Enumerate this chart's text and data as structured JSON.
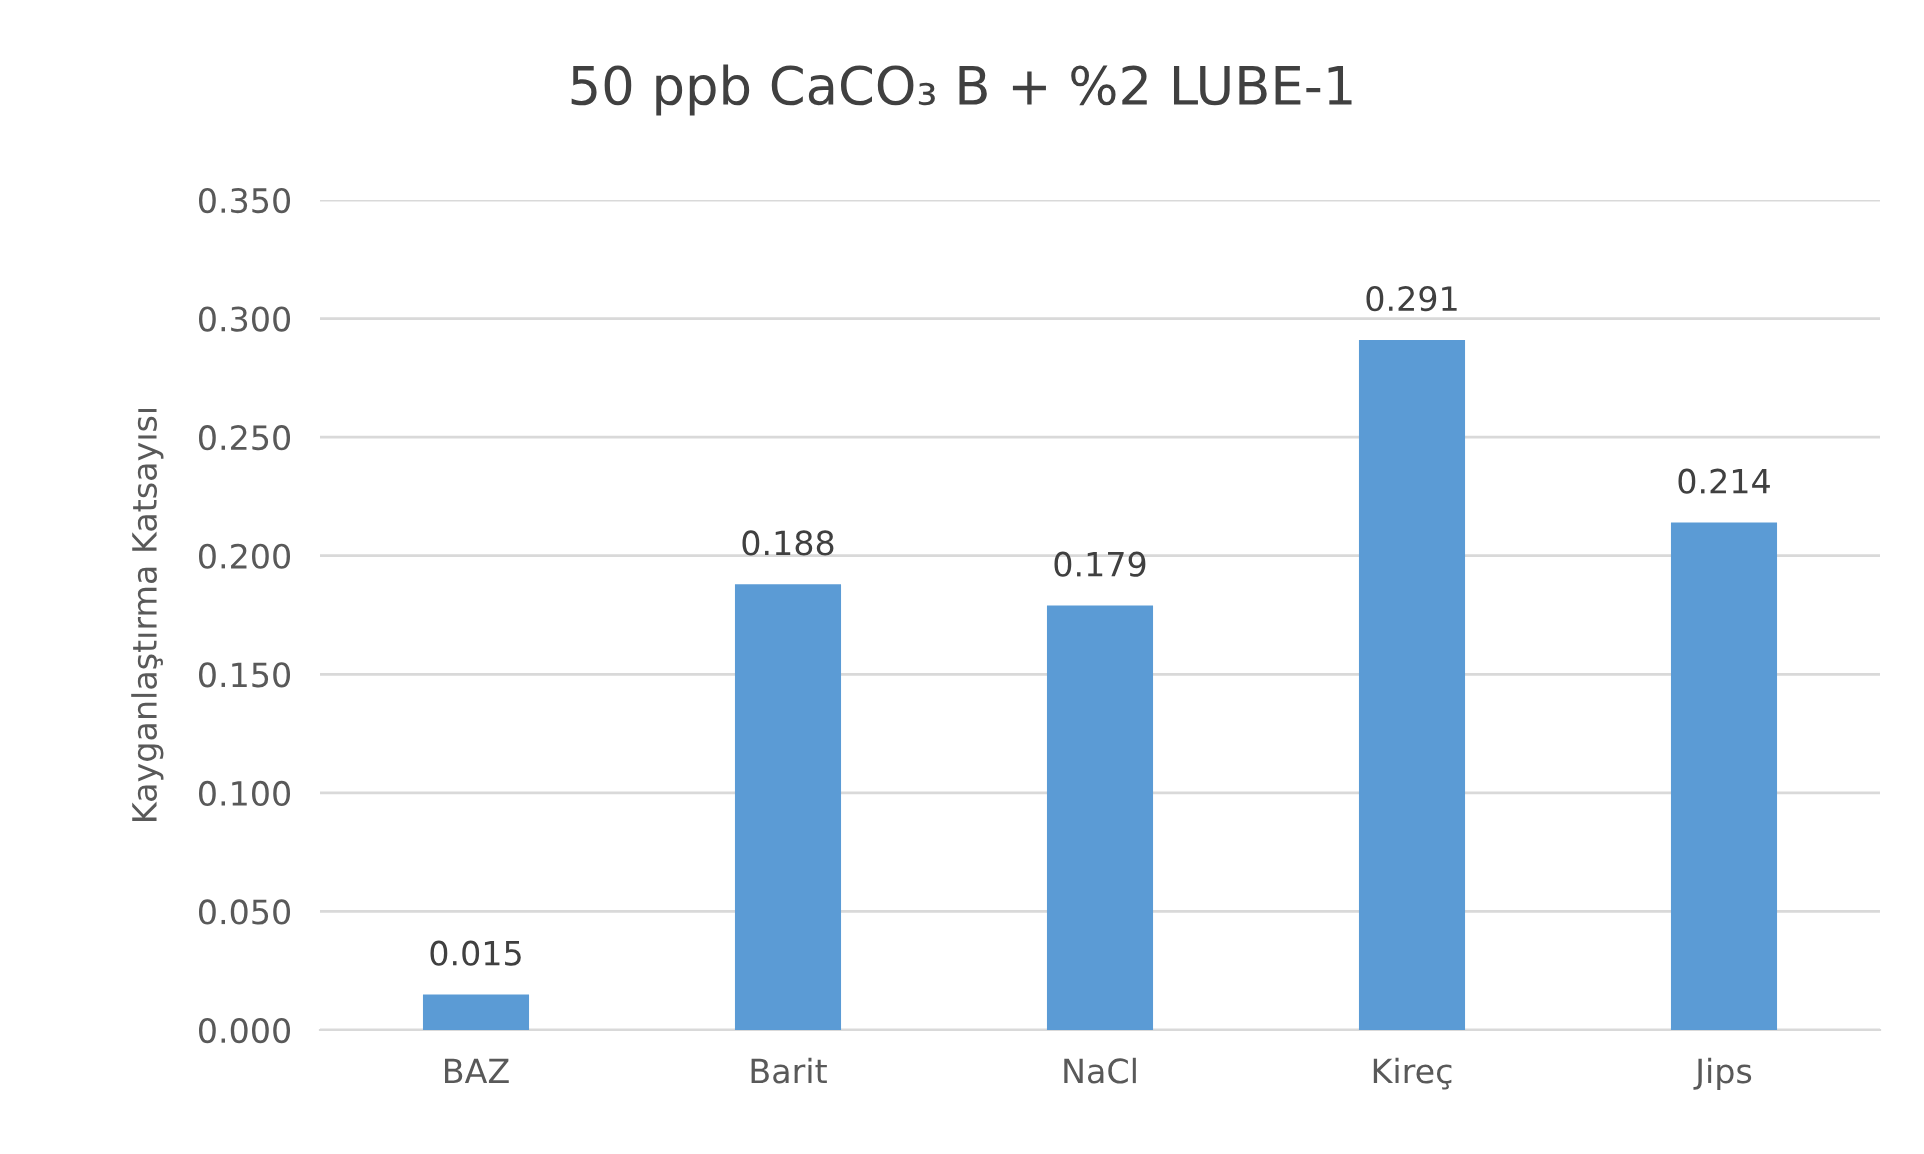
{
  "chart_data": {
    "type": "bar",
    "title": "50 ppb CaCO₃ B + %2 LUBE-1",
    "ylabel": "Kayganlaştırma Katsayısı",
    "categories": [
      "BAZ",
      "Barit",
      "NaCl",
      "Kireç",
      "Jips"
    ],
    "values": [
      0.015,
      0.188,
      0.179,
      0.291,
      0.214
    ],
    "color": "#5b9bd5",
    "ylim": [
      0,
      0.35
    ],
    "yticks": [
      {
        "value": 0,
        "label": "0.000"
      },
      {
        "value": 0.05,
        "label": "0.050"
      },
      {
        "value": 0.1,
        "label": "0.100"
      },
      {
        "value": 0.15,
        "label": "0.150"
      },
      {
        "value": 0.2,
        "label": "0.200"
      },
      {
        "value": 0.25,
        "label": "0.250"
      },
      {
        "value": 0.3,
        "label": "0.300"
      },
      {
        "value": 0.35,
        "label": "0.350"
      }
    ],
    "grid": "y",
    "data_labels": true,
    "legend": false
  }
}
